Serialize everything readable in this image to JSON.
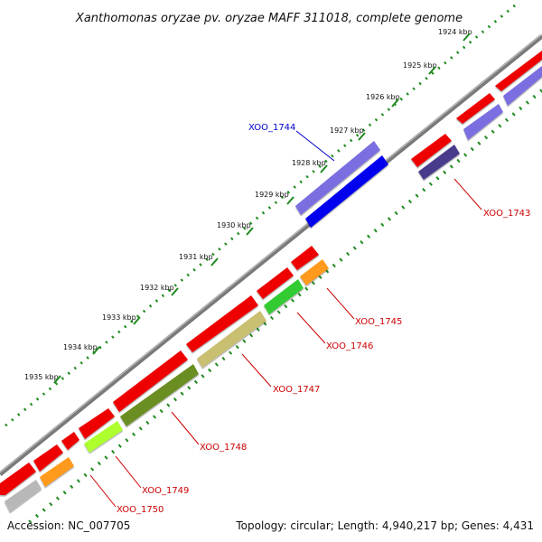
{
  "title": "Xanthomonas oryzae pv. oryzae MAFF 311018, complete genome",
  "footer": {
    "accession": "Accession: NC_007705",
    "topology": "Topology: circular; Length: 4,940,217 bp; Genes: 4,431"
  },
  "colors": {
    "backbone": "#808080",
    "cds": "#ee0000",
    "tick": "#1f8a1f",
    "label_red": "#cc0000",
    "label_blue": "#0000cc"
  },
  "ticks": [
    {
      "label": "1924 kbp"
    },
    {
      "label": "1925 kbp"
    },
    {
      "label": "1926 kbp"
    },
    {
      "label": "1927 kbp"
    },
    {
      "label": "1928 kbp"
    },
    {
      "label": "1929 kbp"
    },
    {
      "label": "1930 kbp"
    },
    {
      "label": "1931 kbp"
    },
    {
      "label": "1932 kbp"
    },
    {
      "label": "1933 kbp"
    },
    {
      "label": "1934 kbp"
    },
    {
      "label": "1935 kbp"
    }
  ],
  "genes": [
    {
      "label": "XOO_1743",
      "color": "#4a3a8c"
    },
    {
      "label": "XOO_1744",
      "color": "#7a6ee0"
    },
    {
      "label": "XOO_1745",
      "color": "#ff9a1a"
    },
    {
      "label": "XOO_1746",
      "color": "#33cc33"
    },
    {
      "label": "XOO_1747",
      "color": "#c8bf70"
    },
    {
      "label": "XOO_1748",
      "color": "#6b8e23"
    },
    {
      "label": "XOO_1749",
      "color": "#adff2f"
    },
    {
      "label": "XOO_1750",
      "color": "#b8b8b8"
    }
  ]
}
